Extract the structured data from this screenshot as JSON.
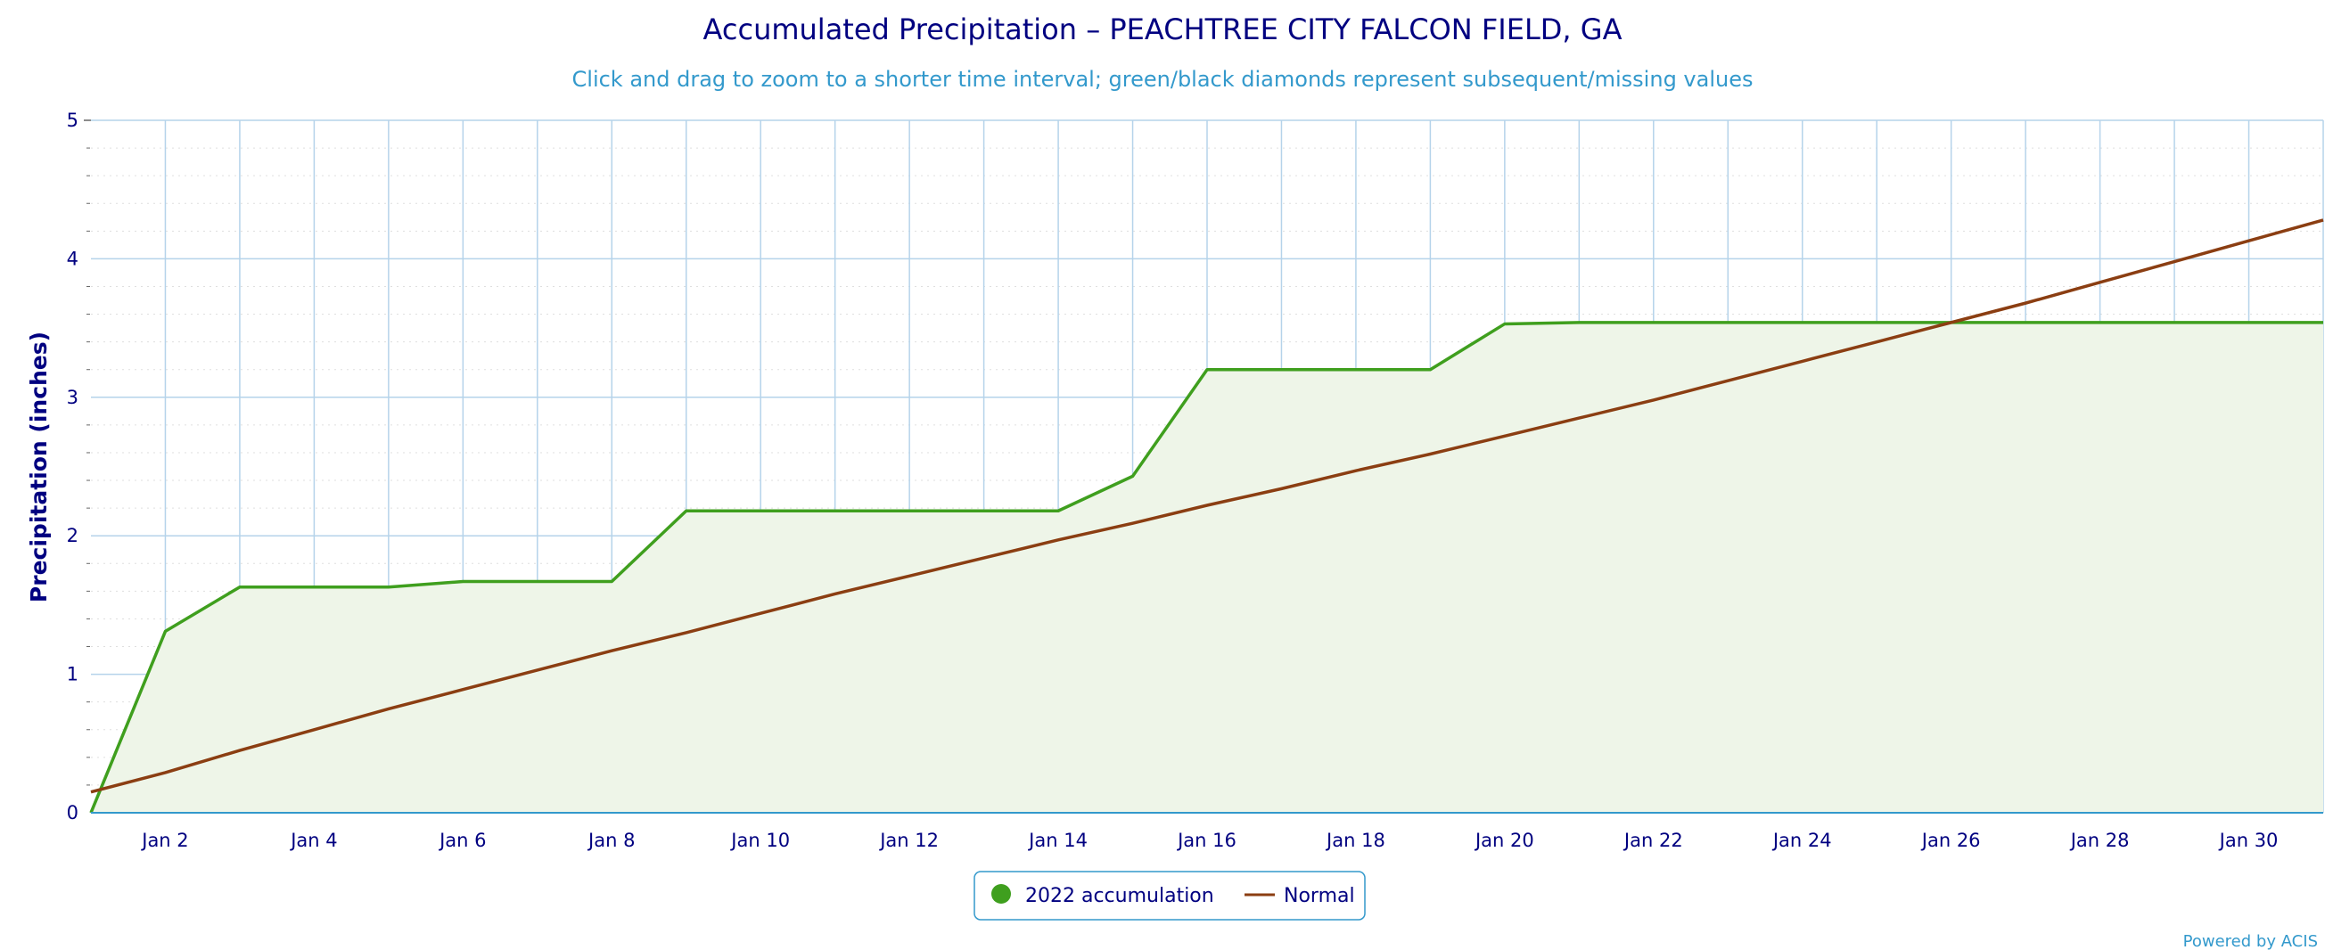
{
  "colors": {
    "accumulation": "#3f9f1e",
    "normal": "#8b3e12",
    "fill": "#eef5e8",
    "grid": "#b5d3ea",
    "minor_grid": "#dfdfdf",
    "axis_text": "#000080",
    "accent": "#3399cc"
  },
  "chart_data": {
    "type": "line",
    "title": "Accumulated Precipitation – PEACHTREE CITY FALCON FIELD, GA",
    "subtitle": "Click and drag to zoom to a shorter time interval; green/black diamonds represent subsequent/missing values",
    "ylabel": "Precipitation (inches)",
    "xlabel": "",
    "ylim": [
      0,
      5
    ],
    "xlim": [
      "2022-01-01",
      "2022-01-31"
    ],
    "yticks": [
      "0",
      "1",
      "2",
      "3",
      "4",
      "5"
    ],
    "xticks": [
      "Jan 2",
      "Jan 4",
      "Jan 6",
      "Jan 8",
      "Jan 10",
      "Jan 12",
      "Jan 14",
      "Jan 16",
      "Jan 18",
      "Jan 20",
      "Jan 22",
      "Jan 24",
      "Jan 26",
      "Jan 28",
      "Jan 30"
    ],
    "xtick_dates": [
      "2022-01-02",
      "2022-01-04",
      "2022-01-06",
      "2022-01-08",
      "2022-01-10",
      "2022-01-12",
      "2022-01-14",
      "2022-01-16",
      "2022-01-18",
      "2022-01-20",
      "2022-01-22",
      "2022-01-24",
      "2022-01-26",
      "2022-01-28",
      "2022-01-30"
    ],
    "grid": true,
    "legend_position": "bottom-center",
    "series": [
      {
        "name": "2022 accumulation",
        "style": "area",
        "x": [
          "2022-01-01",
          "2022-01-02",
          "2022-01-03",
          "2022-01-04",
          "2022-01-05",
          "2022-01-06",
          "2022-01-07",
          "2022-01-08",
          "2022-01-09",
          "2022-01-10",
          "2022-01-11",
          "2022-01-12",
          "2022-01-13",
          "2022-01-14",
          "2022-01-15",
          "2022-01-16",
          "2022-01-17",
          "2022-01-18",
          "2022-01-19",
          "2022-01-20",
          "2022-01-21",
          "2022-01-22",
          "2022-01-23",
          "2022-01-24",
          "2022-01-25",
          "2022-01-26",
          "2022-01-27",
          "2022-01-28",
          "2022-01-29",
          "2022-01-30",
          "2022-01-31"
        ],
        "values": [
          0.0,
          1.31,
          1.63,
          1.63,
          1.63,
          1.67,
          1.67,
          1.67,
          2.18,
          2.18,
          2.18,
          2.18,
          2.18,
          2.18,
          2.43,
          3.2,
          3.2,
          3.2,
          3.2,
          3.53,
          3.54,
          3.54,
          3.54,
          3.54,
          3.54,
          3.54,
          3.54,
          3.54,
          3.54,
          3.54,
          3.54
        ]
      },
      {
        "name": "Normal",
        "style": "line",
        "x": [
          "2022-01-01",
          "2022-01-02",
          "2022-01-03",
          "2022-01-04",
          "2022-01-05",
          "2022-01-06",
          "2022-01-07",
          "2022-01-08",
          "2022-01-09",
          "2022-01-10",
          "2022-01-11",
          "2022-01-12",
          "2022-01-13",
          "2022-01-14",
          "2022-01-15",
          "2022-01-16",
          "2022-01-17",
          "2022-01-18",
          "2022-01-19",
          "2022-01-20",
          "2022-01-21",
          "2022-01-22",
          "2022-01-23",
          "2022-01-24",
          "2022-01-25",
          "2022-01-26",
          "2022-01-27",
          "2022-01-28",
          "2022-01-29",
          "2022-01-30",
          "2022-01-31"
        ],
        "values": [
          0.15,
          0.29,
          0.45,
          0.6,
          0.75,
          0.89,
          1.03,
          1.17,
          1.3,
          1.44,
          1.58,
          1.71,
          1.84,
          1.97,
          2.09,
          2.22,
          2.34,
          2.47,
          2.59,
          2.72,
          2.85,
          2.98,
          3.12,
          3.26,
          3.4,
          3.54,
          3.68,
          3.83,
          3.98,
          4.13,
          4.28
        ]
      }
    ]
  },
  "footer": {
    "credit": "Powered by ACIS"
  }
}
